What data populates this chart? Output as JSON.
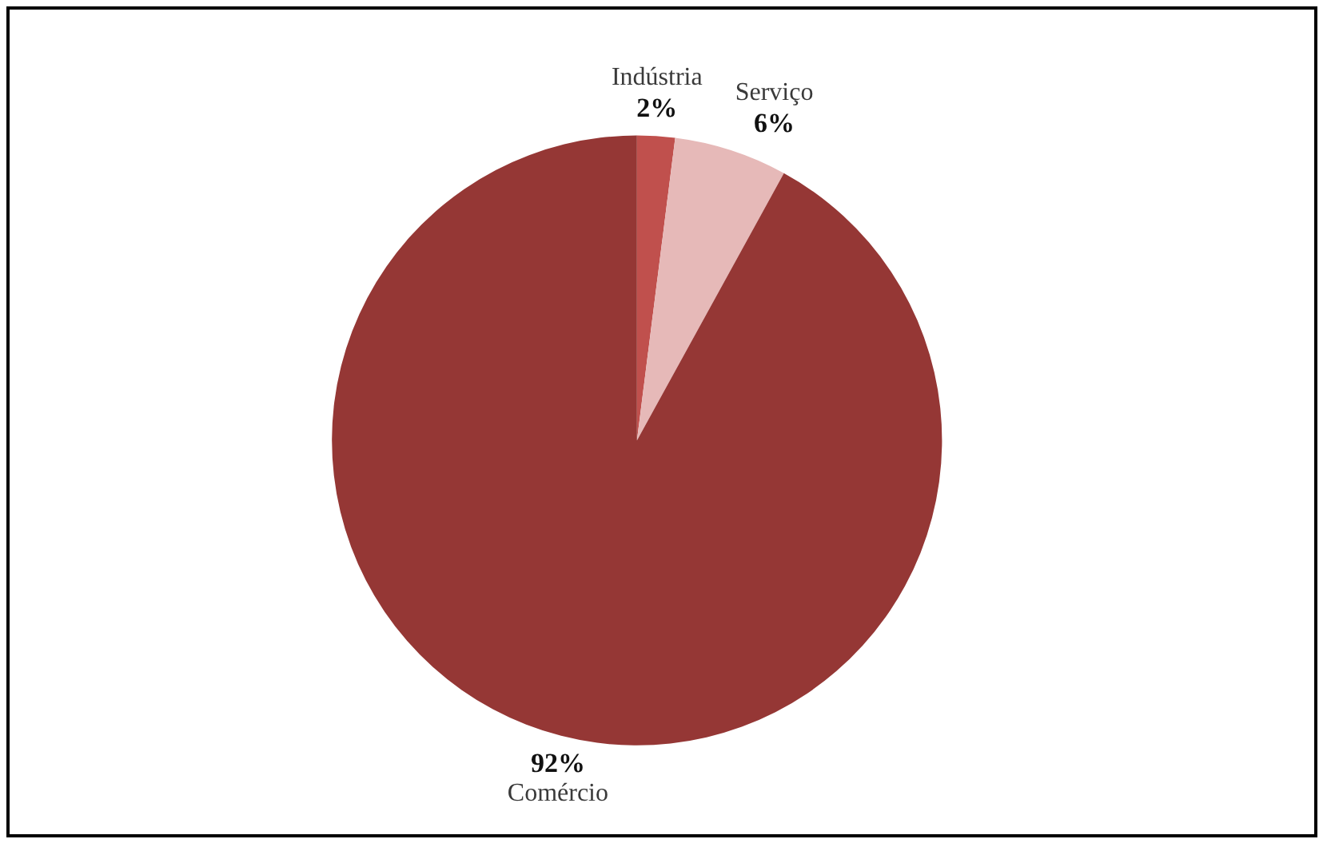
{
  "chart_data": {
    "type": "pie",
    "categories": [
      "Indústria",
      "Serviço",
      "Comércio"
    ],
    "values": [
      2,
      6,
      92
    ],
    "colors": [
      "#c0504d",
      "#e6b9b8",
      "#953735"
    ],
    "value_labels": [
      "2%",
      "6%",
      "92%"
    ]
  }
}
